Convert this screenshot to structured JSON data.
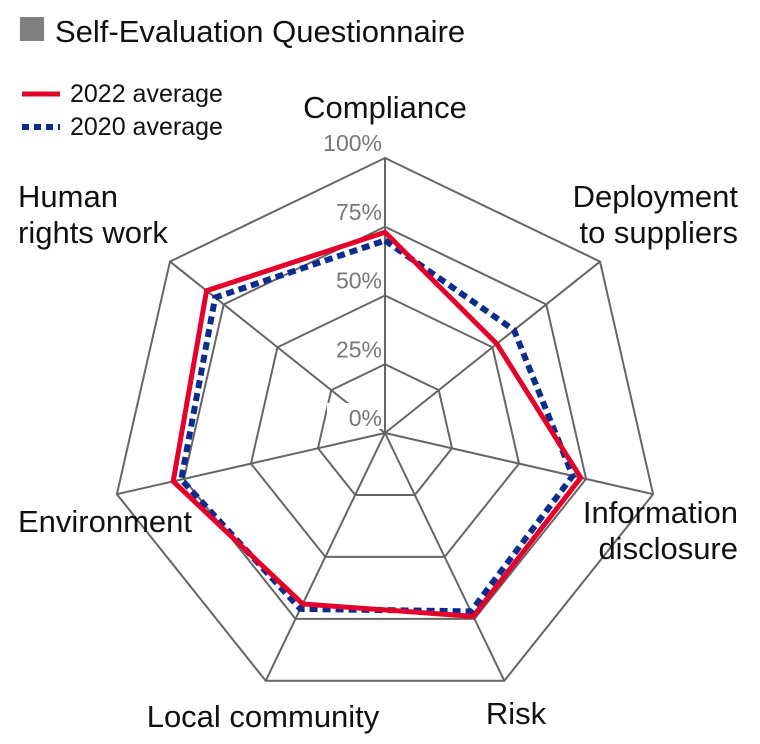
{
  "chart_data": {
    "type": "radar",
    "title": "Self-Evaluation Questionnaire",
    "axes": [
      [
        "Compliance"
      ],
      [
        "Deployment",
        "to suppliers"
      ],
      [
        "Information",
        "disclosure"
      ],
      [
        "Risk"
      ],
      [
        "Local community"
      ],
      [
        "Environment"
      ],
      [
        "Human",
        "rights work"
      ]
    ],
    "ticks": [
      "0%",
      "25%",
      "50%",
      "75%",
      "100%"
    ],
    "range": [
      0,
      100
    ],
    "series": [
      {
        "name": "2022 average",
        "color": "#e4002b",
        "style": "solid",
        "values": [
          73,
          52,
          73,
          74,
          69,
          79,
          83
        ]
      },
      {
        "name": "2020 average",
        "color": "#0a2d8c",
        "style": "dashed",
        "values": [
          70,
          60,
          70,
          72,
          71,
          76,
          79
        ]
      }
    ],
    "legend": "top-left",
    "grid_color": "#666666",
    "title_marker_color": "#808080"
  }
}
